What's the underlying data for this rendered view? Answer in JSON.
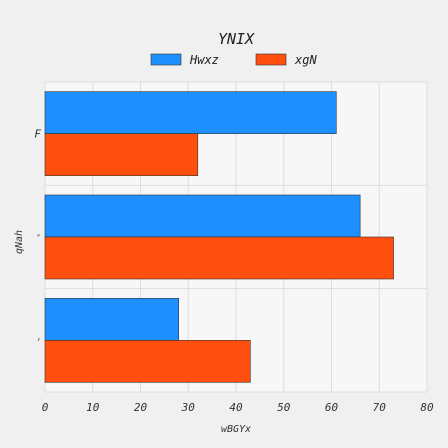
{
  "chart_data": {
    "type": "bar",
    "orientation": "horizontal",
    "title": "YNIX",
    "xlabel": "wBGYx",
    "ylabel": "qNah",
    "categories": [
      "F",
      "ᴷ",
      "ʸ"
    ],
    "series": [
      {
        "name": "Hwxz",
        "color": "#1e8fff",
        "values": [
          61,
          66,
          28
        ]
      },
      {
        "name": "xgN",
        "color": "#ff4f0f",
        "values": [
          32,
          73,
          43
        ]
      }
    ],
    "xlim": [
      0,
      80
    ],
    "xticks": [
      0,
      10,
      20,
      30,
      40,
      50,
      60,
      70,
      80
    ],
    "grid": true,
    "legend_position": "top-center"
  }
}
